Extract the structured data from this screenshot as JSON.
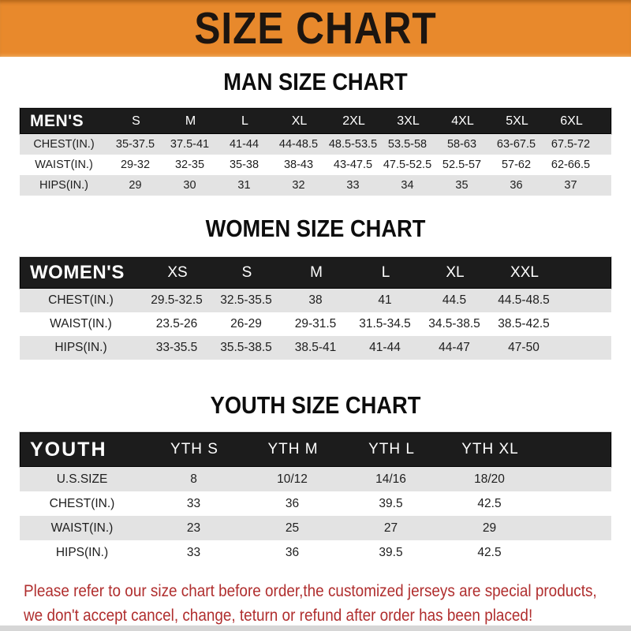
{
  "banner": {
    "title": "SIZE CHART",
    "bg_color": "#e8892c",
    "text_color": "#1c1510"
  },
  "colors": {
    "table_header_bg": "#1c1c1c",
    "table_header_text": "#ffffff",
    "row_alt_bg": "#e3e3e3",
    "disclaimer_text": "#b02e2e"
  },
  "sections": [
    {
      "key": "men",
      "heading": "MAN SIZE CHART",
      "label": "MEN'S",
      "columns": [
        "S",
        "M",
        "L",
        "XL",
        "2XL",
        "3XL",
        "4XL",
        "5XL",
        "6XL"
      ],
      "rows": [
        {
          "label": "CHEST(IN.)",
          "values": [
            "35-37.5",
            "37.5-41",
            "41-44",
            "44-48.5",
            "48.5-53.5",
            "53.5-58",
            "58-63",
            "63-67.5",
            "67.5-72"
          ]
        },
        {
          "label": "WAIST(IN.)",
          "values": [
            "29-32",
            "32-35",
            "35-38",
            "38-43",
            "43-47.5",
            "47.5-52.5",
            "52.5-57",
            "57-62",
            "62-66.5"
          ]
        },
        {
          "label": "HIPS(IN.)",
          "values": [
            "29",
            "30",
            "31",
            "32",
            "33",
            "34",
            "35",
            "36",
            "37"
          ]
        }
      ]
    },
    {
      "key": "women",
      "heading": "WOMEN SIZE CHART",
      "label": "WOMEN'S",
      "columns": [
        "XS",
        "S",
        "M",
        "L",
        "XL",
        "XXL"
      ],
      "rows": [
        {
          "label": "CHEST(IN.)",
          "values": [
            "29.5-32.5",
            "32.5-35.5",
            "38",
            "41",
            "44.5",
            "44.5-48.5"
          ]
        },
        {
          "label": "WAIST(IN.)",
          "values": [
            "23.5-26",
            "26-29",
            "29-31.5",
            "31.5-34.5",
            "34.5-38.5",
            "38.5-42.5"
          ]
        },
        {
          "label": "HIPS(IN.)",
          "values": [
            "33-35.5",
            "35.5-38.5",
            "38.5-41",
            "41-44",
            "44-47",
            "47-50"
          ]
        }
      ]
    },
    {
      "key": "youth",
      "heading": "YOUTH SIZE CHART",
      "label": "YOUTH",
      "columns": [
        "YTH S",
        "YTH M",
        "YTH L",
        "YTH XL"
      ],
      "rows": [
        {
          "label": "U.S.SIZE",
          "values": [
            "8",
            "10/12",
            "14/16",
            "18/20"
          ]
        },
        {
          "label": "CHEST(IN.)",
          "values": [
            "33",
            "36",
            "39.5",
            "42.5"
          ]
        },
        {
          "label": "WAIST(IN.)",
          "values": [
            "23",
            "25",
            "27",
            "29"
          ]
        },
        {
          "label": "HIPS(IN.)",
          "values": [
            "33",
            "36",
            "39.5",
            "42.5"
          ]
        }
      ]
    }
  ],
  "disclaimer": {
    "line1": "Please refer to our size chart before order,the customized jerseys are special products,",
    "line2": "we don't accept cancel, change, teturn or refund after order has been placed!"
  }
}
